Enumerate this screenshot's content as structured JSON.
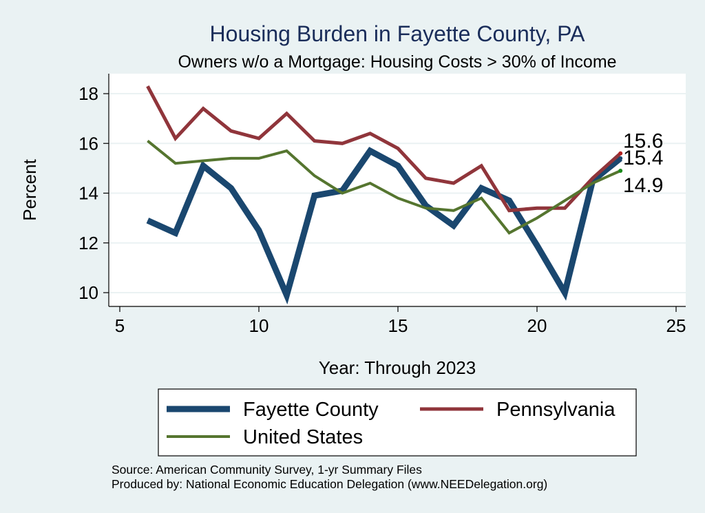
{
  "chart_data": {
    "type": "line",
    "title": "Housing Burden in Fayette County, PA",
    "subtitle": "Owners w/o a Mortgage: Housing Costs > 30% of Income",
    "xlabel": "Year: Through 2023",
    "ylabel": "Percent",
    "xlim": [
      5,
      25
    ],
    "ylim": [
      9.7,
      18.7
    ],
    "xticks": [
      5,
      10,
      15,
      20,
      25
    ],
    "yticks": [
      10,
      12,
      14,
      16,
      18
    ],
    "grid": true,
    "legend_position": "bottom",
    "series": [
      {
        "name": "Fayette County",
        "color": "#1a476f",
        "x": [
          6,
          7,
          8,
          9,
          10,
          11,
          12,
          13,
          14,
          15,
          16,
          17,
          18,
          19,
          20,
          21,
          22,
          23
        ],
        "values": [
          12.9,
          12.4,
          15.1,
          14.2,
          12.5,
          9.9,
          13.9,
          14.1,
          15.7,
          15.1,
          13.5,
          12.7,
          14.2,
          13.7,
          11.9,
          10.0,
          14.5,
          15.4
        ],
        "end_label": "15.4"
      },
      {
        "name": "Pennsylvania",
        "color": "#90353b",
        "x": [
          6,
          7,
          8,
          9,
          10,
          11,
          12,
          13,
          14,
          15,
          16,
          17,
          18,
          19,
          20,
          21,
          22,
          23
        ],
        "values": [
          18.3,
          16.2,
          17.4,
          16.5,
          16.2,
          17.2,
          16.1,
          16.0,
          16.4,
          15.8,
          14.6,
          14.4,
          15.1,
          13.3,
          13.4,
          13.4,
          14.6,
          15.6
        ],
        "end_label": "15.6"
      },
      {
        "name": "United States",
        "color": "#55752f",
        "x": [
          6,
          7,
          8,
          9,
          10,
          11,
          12,
          13,
          14,
          15,
          16,
          17,
          18,
          19,
          20,
          21,
          22,
          23
        ],
        "values": [
          16.1,
          15.2,
          15.3,
          15.4,
          15.4,
          15.7,
          14.7,
          14.0,
          14.4,
          13.8,
          13.4,
          13.3,
          13.8,
          12.4,
          13.0,
          13.7,
          14.4,
          14.9
        ],
        "end_label": "14.9"
      }
    ]
  },
  "source_note": "Source: American Community Survey, 1-yr Summary Files",
  "produced_note": "Produced by: National Economic Education Delegation (www.NEEDelegation.org)"
}
